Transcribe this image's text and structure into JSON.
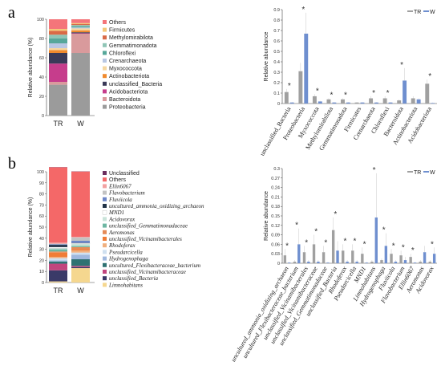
{
  "panel_labels": [
    "a",
    "b"
  ],
  "chart_data": [
    {
      "type": "bar",
      "stacked": true,
      "ylabel": "Relative abundance (%)",
      "categories": [
        "TR",
        "W"
      ],
      "ylim": [
        0,
        100
      ],
      "yticks": [
        0,
        20,
        40,
        60,
        80,
        100
      ],
      "italic_legend": false,
      "series": [
        {
          "name": "Proteobacteria",
          "color": "#9b9b9b",
          "values": [
            32,
            65
          ]
        },
        {
          "name": "Bacteroidota",
          "color": "#d99a9c",
          "values": [
            3,
            20
          ]
        },
        {
          "name": "Acidobacteriota",
          "color": "#c63d8c",
          "values": [
            19,
            0.5
          ]
        },
        {
          "name": "unclassified_Bacteria",
          "color": "#3a3a58",
          "values": [
            11,
            1
          ]
        },
        {
          "name": "Actinobacteriota",
          "color": "#f08a2d",
          "values": [
            3,
            2
          ]
        },
        {
          "name": "Myxococcota",
          "color": "#f5d7a0",
          "values": [
            2,
            2
          ]
        },
        {
          "name": "Crenarchaeota",
          "color": "#b8c7e3",
          "values": [
            5,
            1
          ]
        },
        {
          "name": "Chloroflexi",
          "color": "#56a79a",
          "values": [
            5,
            1
          ]
        },
        {
          "name": "Gemmatimonadota",
          "color": "#8fc5b6",
          "values": [
            4,
            1.5
          ]
        },
        {
          "name": "Methylomirabilota",
          "color": "#d96a47",
          "values": [
            4,
            1
          ]
        },
        {
          "name": "Firmicutes",
          "color": "#f4c778",
          "values": [
            2,
            1
          ]
        },
        {
          "name": "Others",
          "color": "#f4757a",
          "values": [
            10,
            4
          ]
        }
      ]
    },
    {
      "type": "bar",
      "ylabel": "Relative abundance",
      "legend": [
        "TR",
        "W"
      ],
      "colors": {
        "TR": "#a0a0a0",
        "W": "#6f8fcf"
      },
      "ylim": [
        0,
        0.9
      ],
      "yticks": [
        0,
        0.1,
        0.2,
        0.3,
        0.4,
        0.5,
        0.6,
        0.7,
        0.8,
        0.9
      ],
      "ytick_labels": [
        "0",
        "0.1",
        "0.2",
        "0.3",
        "0.4",
        "0.5",
        "0.6",
        "0.7",
        "0.8",
        "0.9"
      ],
      "categories": [
        "unclassified_Bacteria",
        "Proteobacteria",
        "Myxococcota",
        "Methylomirabilota",
        "Gemmatimonadota",
        "Firmicutes",
        "Crenarchaeota",
        "Chloroflexi",
        "Bacteroidota",
        "Actinobacteriota",
        "Acidobacteriota"
      ],
      "italic_categories": false,
      "series": [
        {
          "name": "TR",
          "values": [
            0.11,
            0.31,
            0.07,
            0.04,
            0.04,
            0.01,
            0.05,
            0.05,
            0.03,
            0.05,
            0.19
          ]
        },
        {
          "name": "W",
          "values": [
            0.01,
            0.67,
            0.02,
            0.01,
            0.01,
            0.01,
            0.01,
            0.01,
            0.22,
            0.04,
            0.005
          ]
        }
      ],
      "error": {
        "TR": [
          0.03,
          0.08,
          0.02,
          0.01,
          0.01,
          0.005,
          0.02,
          0.02,
          0.01,
          0.02,
          0.04
        ],
        "W": [
          0.005,
          0.2,
          0.005,
          0.005,
          0.005,
          0.005,
          0.005,
          0.005,
          0.12,
          0.01,
          0.005
        ]
      },
      "stars": [
        true,
        true,
        true,
        true,
        true,
        false,
        true,
        true,
        true,
        false,
        true
      ]
    },
    {
      "type": "bar",
      "stacked": true,
      "ylabel": "Relative abundance (%)",
      "categories": [
        "TR",
        "W"
      ],
      "ylim": [
        0,
        100
      ],
      "yticks": [
        0,
        10,
        20,
        30,
        40,
        50,
        60,
        70,
        80,
        90,
        100
      ],
      "italic_legend": true,
      "series": [
        {
          "name": "Limnohabitans",
          "color": "#f5d78f",
          "values": [
            1,
            13
          ]
        },
        {
          "name": "unclassified_Bacteria",
          "color": "#3a3a68",
          "values": [
            10,
            1
          ]
        },
        {
          "name": "unclassified_Vicinamibacteraceae",
          "color": "#c2457e",
          "values": [
            6,
            1
          ]
        },
        {
          "name": "uncultured_Flexibacteraceae_bacterium",
          "color": "#2f7272",
          "values": [
            2,
            6
          ]
        },
        {
          "name": "Hydrogenophaga",
          "color": "#9fb8de",
          "values": [
            1,
            4
          ]
        },
        {
          "name": "Pseudarcicella",
          "color": "#cfe0f0",
          "values": [
            2,
            2
          ]
        },
        {
          "name": "Rhodoferax",
          "color": "#f0b07f",
          "values": [
            1,
            2
          ]
        },
        {
          "name": "unclassified_Vicinamibacterales",
          "color": "#f07c36",
          "values": [
            4,
            1
          ]
        },
        {
          "name": "Aeromonas",
          "color": "#e58a57",
          "values": [
            1,
            2
          ]
        },
        {
          "name": "unclassified_Gemmatimonadaceae",
          "color": "#6db6a2",
          "values": [
            2,
            1
          ]
        },
        {
          "name": "Acidovorax",
          "color": "#c9e3d9",
          "values": [
            1,
            2
          ]
        },
        {
          "name": "MND1",
          "color": "#ffffff",
          "values": [
            1,
            0.5
          ]
        },
        {
          "name": "uncultured_ammonia_oxidizing_archaeon",
          "color": "#223348",
          "values": [
            2,
            0.2
          ]
        },
        {
          "name": "Fluviicola",
          "color": "#6d86c8",
          "values": [
            0.5,
            2
          ]
        },
        {
          "name": "Flavobacterium",
          "color": "#c3c3c3",
          "values": [
            0.5,
            3
          ]
        },
        {
          "name": "Ellin6067",
          "color": "#f2a2a2",
          "values": [
            1,
            0.5
          ]
        },
        {
          "name": "Others",
          "color": "#f46868",
          "values": [
            68,
            59
          ]
        },
        {
          "name": "Unclassified",
          "color": "#6b2e5e",
          "values": [
            0.2,
            0.2
          ]
        }
      ]
    },
    {
      "type": "bar",
      "ylabel": "Relative abundance",
      "legend": [
        "TR",
        "W"
      ],
      "colors": {
        "TR": "#a0a0a0",
        "W": "#6f8fcf"
      },
      "ylim": [
        0,
        0.3
      ],
      "yticks": [
        0,
        0.03,
        0.06,
        0.09,
        0.12,
        0.15,
        0.18,
        0.21,
        0.24,
        0.27,
        0.3
      ],
      "ytick_labels": [
        "0",
        "0.03",
        "0.06",
        "0.09",
        "0.12",
        "0.15",
        "0.18",
        "0.21",
        "0.24",
        "0.27",
        "0.3"
      ],
      "categories": [
        "uncultured_ammonia_oxidizing_archaeon",
        "uncultured_Flexibacteraceae_bacterium",
        "unclassified_Vicinamibacterales",
        "unclassified_Vicinamibacteraceae",
        "unclassified_Gemmatimonadaceae",
        "unclassified_Bacteria",
        "Rhodoferax",
        "Pseudarcicella",
        "MND1",
        "Limnohabitans",
        "Hydrogenophaga",
        "Fluviicola",
        "Flavobacterium",
        "Ellin6067",
        "Aeromonas",
        "Acidovorax"
      ],
      "italic_categories": true,
      "series": [
        {
          "name": "TR",
          "values": [
            0.025,
            0.005,
            0.035,
            0.06,
            0.035,
            0.105,
            0.04,
            0.04,
            0.03,
            0.005,
            0.01,
            0.03,
            0.025,
            0.02,
            0.005,
            0.005
          ]
        },
        {
          "name": "W",
          "values": [
            0.002,
            0.06,
            0.005,
            0.005,
            0.002,
            0.04,
            0.005,
            0.005,
            0.002,
            0.145,
            0.055,
            0.005,
            0.01,
            0.002,
            0.035,
            0.03
          ]
        }
      ],
      "error": {
        "TR": [
          0.02,
          0.005,
          0.02,
          0.03,
          0.02,
          0.04,
          0.02,
          0.02,
          0.02,
          0.005,
          0.005,
          0.015,
          0.015,
          0.01,
          0.005,
          0.005
        ],
        "W": [
          0.002,
          0.05,
          0.005,
          0.005,
          0.002,
          0.03,
          0.005,
          0.005,
          0.002,
          0.14,
          0.04,
          0.005,
          0.01,
          0.002,
          0.02,
          0.02
        ]
      },
      "stars": [
        true,
        true,
        true,
        true,
        true,
        true,
        true,
        true,
        true,
        true,
        true,
        true,
        true,
        true,
        false,
        true
      ]
    }
  ]
}
